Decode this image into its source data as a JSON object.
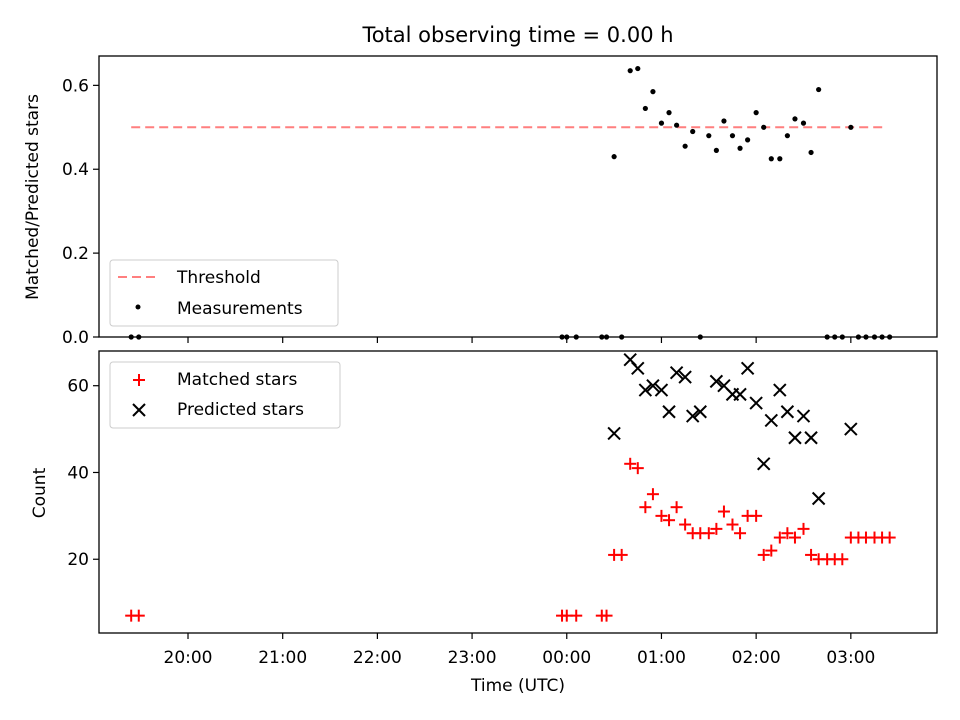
{
  "chart_data": [
    {
      "type": "scatter",
      "title": "Total observing time = 0.00 h",
      "xlabel": "",
      "ylabel": "Matched/Predicted stars",
      "xlim": [
        -4.94,
        3.91
      ],
      "ylim": [
        0,
        0.67
      ],
      "yticks": [
        0,
        0.2,
        0.4,
        0.6
      ],
      "ytick_labels": [
        "0.0",
        "0.2",
        "0.4",
        "0.6"
      ],
      "legend": {
        "position": "lower-left",
        "entries": [
          "Threshold",
          "Measurements"
        ]
      },
      "threshold": {
        "name": "Threshold",
        "x": [
          -4.6,
          3.37
        ],
        "y": 0.5,
        "color": "#ff7f7f"
      },
      "series": [
        {
          "name": "Measurements",
          "marker": "dot",
          "color": "#000000",
          "x": [
            -4.6,
            -4.52,
            -0.05,
            0.0,
            0.1,
            0.37,
            0.42,
            0.5,
            0.58,
            0.67,
            0.75,
            0.83,
            0.91,
            1.0,
            1.08,
            1.16,
            1.25,
            1.33,
            1.41,
            1.5,
            1.58,
            1.66,
            1.75,
            1.83,
            1.91,
            2.0,
            2.08,
            2.16,
            2.25,
            2.33,
            2.41,
            2.5,
            2.58,
            2.66,
            2.75,
            2.83,
            2.91,
            3.0,
            3.08,
            3.16,
            3.25,
            3.33,
            3.41
          ],
          "y": [
            0.0,
            0.0,
            0.0,
            0.0,
            0.0,
            0.0,
            0.0,
            0.43,
            0.0,
            0.635,
            0.64,
            0.545,
            0.585,
            0.51,
            0.535,
            0.505,
            0.455,
            0.49,
            0.0,
            0.48,
            0.445,
            0.515,
            0.48,
            0.45,
            0.47,
            0.535,
            0.5,
            0.425,
            0.425,
            0.48,
            0.52,
            0.51,
            0.44,
            0.59,
            0.0,
            0.0,
            0.0,
            0.5,
            0.0,
            0.0,
            0.0,
            0.0,
            0.0
          ]
        }
      ]
    },
    {
      "type": "scatter",
      "title": "",
      "xlabel": "Time (UTC)",
      "ylabel": "Count",
      "xlim": [
        -4.94,
        3.91
      ],
      "ylim": [
        3,
        68
      ],
      "xticks": [
        -4,
        -3,
        -2,
        -1,
        0,
        1,
        2,
        3
      ],
      "xtick_labels": [
        "20:00",
        "21:00",
        "22:00",
        "23:00",
        "00:00",
        "01:00",
        "02:00",
        "03:00"
      ],
      "yticks": [
        20,
        40,
        60
      ],
      "ytick_labels": [
        "20",
        "40",
        "60"
      ],
      "legend": {
        "position": "upper-left",
        "entries": [
          "Matched stars",
          "Predicted stars"
        ]
      },
      "series": [
        {
          "name": "Matched stars",
          "marker": "plus",
          "color": "#ff0000",
          "x": [
            -4.6,
            -4.52,
            -0.05,
            0.0,
            0.1,
            0.37,
            0.42,
            0.5,
            0.58,
            0.67,
            0.75,
            0.83,
            0.91,
            1.0,
            1.08,
            1.16,
            1.25,
            1.33,
            1.41,
            1.5,
            1.58,
            1.66,
            1.75,
            1.83,
            1.91,
            2.0,
            2.08,
            2.16,
            2.25,
            2.33,
            2.41,
            2.5,
            2.58,
            2.66,
            2.75,
            2.83,
            2.91,
            3.0,
            3.08,
            3.16,
            3.25,
            3.33,
            3.41
          ],
          "y": [
            7,
            7,
            7,
            7,
            7,
            7,
            7,
            21,
            21,
            42,
            41,
            32,
            35,
            30,
            29,
            32,
            28,
            26,
            26,
            26,
            27,
            31,
            28,
            26,
            30,
            30,
            21,
            22,
            25,
            26,
            25,
            27,
            21,
            20,
            20,
            20,
            20,
            25,
            25,
            25,
            25,
            25,
            25
          ]
        },
        {
          "name": "Predicted stars",
          "marker": "x",
          "color": "#000000",
          "x": [
            0.5,
            0.67,
            0.75,
            0.83,
            0.91,
            1.0,
            1.08,
            1.16,
            1.25,
            1.33,
            1.41,
            1.58,
            1.66,
            1.75,
            1.83,
            1.91,
            2.0,
            2.08,
            2.16,
            2.25,
            2.33,
            2.41,
            2.5,
            2.58,
            2.66,
            3.0
          ],
          "y": [
            49,
            66,
            64,
            59,
            60,
            59,
            54,
            63,
            62,
            53,
            54,
            61,
            60,
            58,
            58,
            64,
            56,
            42,
            52,
            59,
            54,
            48,
            53,
            48,
            34,
            50
          ]
        }
      ]
    }
  ]
}
